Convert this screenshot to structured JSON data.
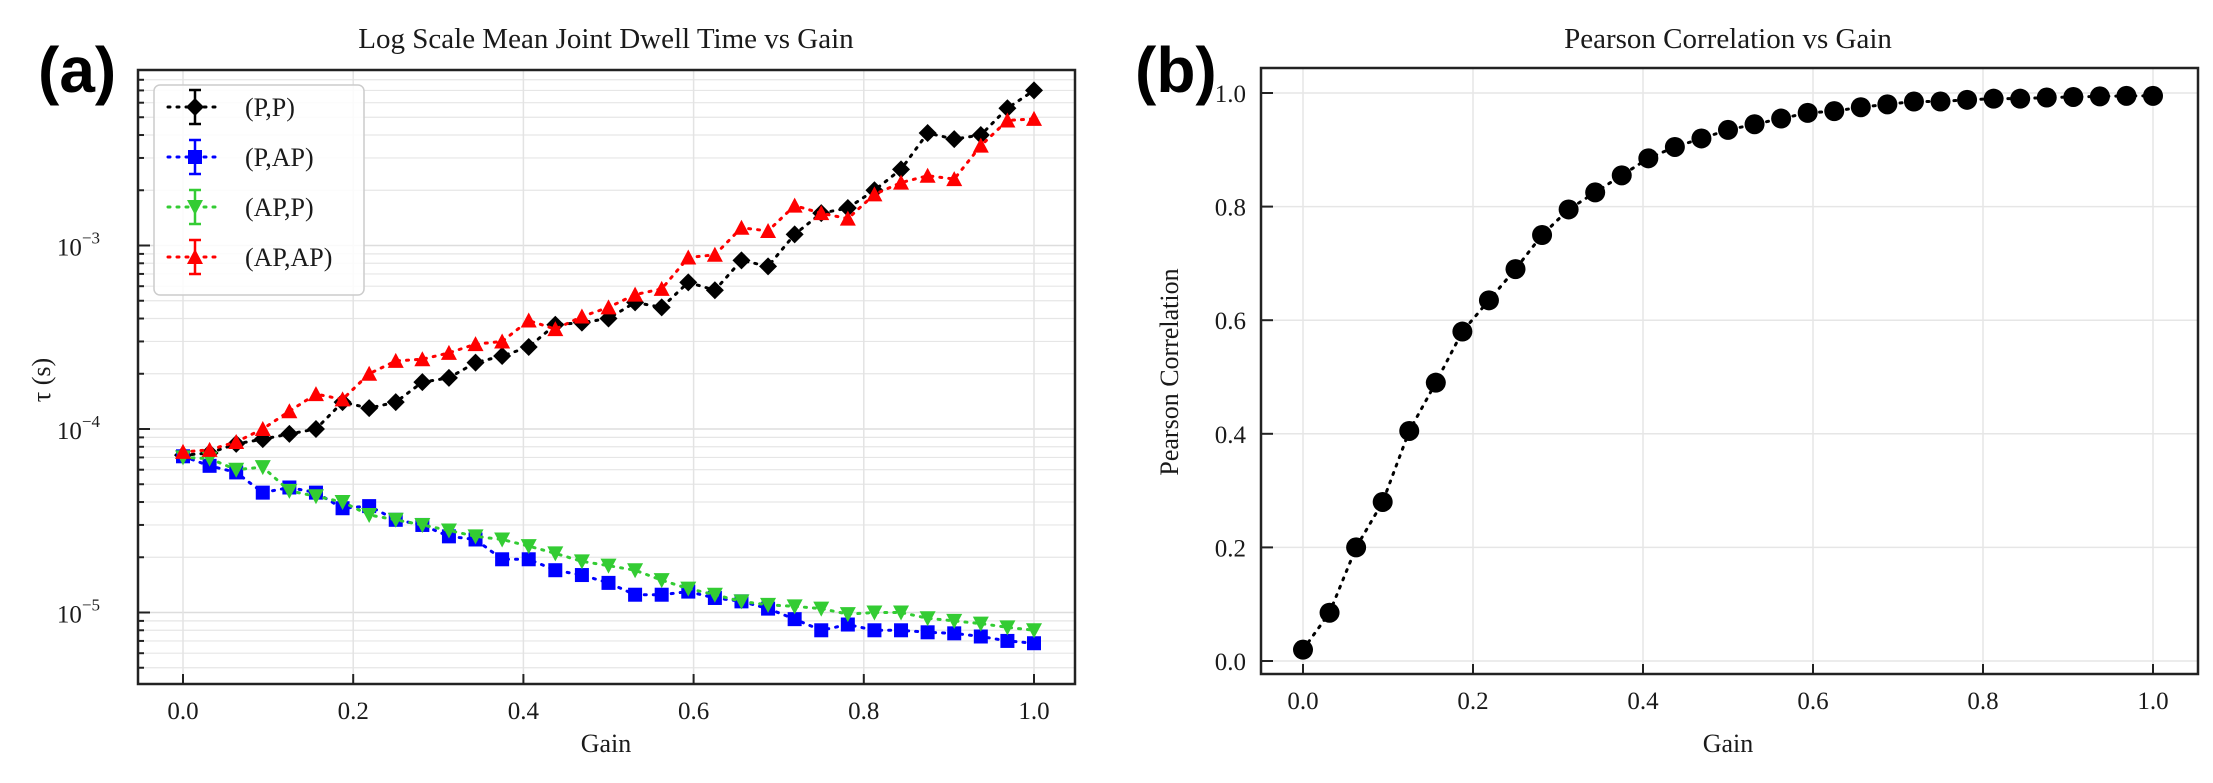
{
  "panels": {
    "a_label": "(a)",
    "b_label": "(b)"
  },
  "chart_data": [
    {
      "type": "line",
      "id": "a",
      "title": "Log Scale Mean Joint Dwell Time vs Gain",
      "xlabel": "Gain",
      "ylabel": "τ (s)",
      "xlim": [
        -0.05,
        1.05
      ],
      "ylim": [
        4.1e-06,
        0.0091
      ],
      "yscale": "log",
      "grid": true,
      "legend_position": "top-left",
      "xticks": [
        0.0,
        0.2,
        0.4,
        0.6,
        0.8,
        1.0
      ],
      "xtick_labels": [
        "0.0",
        "0.2",
        "0.4",
        "0.6",
        "0.8",
        "1.0"
      ],
      "yticks": [
        1e-05,
        0.0001,
        0.001
      ],
      "ytick_base": "10",
      "ytick_exponents": [
        "−5",
        "−4",
        "−3"
      ],
      "x": [
        0,
        0.03125,
        0.0625,
        0.09375,
        0.125,
        0.15625,
        0.1875,
        0.21875,
        0.25,
        0.28125,
        0.3125,
        0.34375,
        0.375,
        0.40625,
        0.4375,
        0.46875,
        0.5,
        0.53125,
        0.5625,
        0.59375,
        0.625,
        0.65625,
        0.6875,
        0.71875,
        0.75,
        0.78125,
        0.8125,
        0.84375,
        0.875,
        0.90625,
        0.9375,
        0.96875,
        1.0
      ],
      "series": [
        {
          "name": "(P,P)",
          "color": "#000000",
          "marker": "diamond",
          "values": [
            7.2e-05,
            7.4e-05,
            8.3e-05,
            8.8e-05,
            9.4e-05,
            0.0001,
            0.00014,
            0.00013,
            0.00014,
            0.00018,
            0.00019,
            0.00023,
            0.00025,
            0.00028,
            0.00037,
            0.00038,
            0.0004,
            0.00049,
            0.00046,
            0.00063,
            0.00057,
            0.00083,
            0.00077,
            0.00115,
            0.0015,
            0.0016,
            0.002,
            0.0026,
            0.0041,
            0.0038,
            0.004,
            0.0056,
            0.007
          ]
        },
        {
          "name": "(P,AP)",
          "color": "#0000ff",
          "marker": "square",
          "values": [
            7.1e-05,
            6.3e-05,
            5.8e-05,
            4.5e-05,
            4.8e-05,
            4.5e-05,
            3.7e-05,
            3.8e-05,
            3.2e-05,
            3e-05,
            2.6e-05,
            2.5e-05,
            1.95e-05,
            1.95e-05,
            1.7e-05,
            1.6e-05,
            1.45e-05,
            1.25e-05,
            1.25e-05,
            1.3e-05,
            1.2e-05,
            1.15e-05,
            1.05e-05,
            9.2e-06,
            8e-06,
            8.6e-06,
            8e-06,
            8e-06,
            7.8e-06,
            7.7e-06,
            7.4e-06,
            7e-06,
            6.8e-06
          ]
        },
        {
          "name": "(AP,P)",
          "color": "#33cc33",
          "marker": "triangle-down",
          "values": [
            7e-05,
            6.9e-05,
            6e-05,
            6.2e-05,
            4.6e-05,
            4.3e-05,
            4e-05,
            3.4e-05,
            3.2e-05,
            3e-05,
            2.8e-05,
            2.6e-05,
            2.5e-05,
            2.3e-05,
            2.1e-05,
            1.9e-05,
            1.8e-05,
            1.7e-05,
            1.5e-05,
            1.35e-05,
            1.25e-05,
            1.15e-05,
            1.1e-05,
            1.08e-05,
            1.05e-05,
            9.8e-06,
            1e-05,
            1e-05,
            9.3e-06,
            9e-06,
            8.7e-06,
            8.3e-06,
            8e-06
          ]
        },
        {
          "name": "(AP,AP)",
          "color": "#ff0000",
          "marker": "triangle-up",
          "values": [
            7.5e-05,
            7.7e-05,
            8.5e-05,
            0.0001,
            0.000125,
            0.000155,
            0.000145,
            0.0002,
            0.000235,
            0.00024,
            0.00026,
            0.00029,
            0.0003,
            0.00039,
            0.00035,
            0.00041,
            0.00046,
            0.00054,
            0.00058,
            0.00086,
            0.00089,
            0.00125,
            0.0012,
            0.00165,
            0.0015,
            0.0014,
            0.0019,
            0.0022,
            0.0024,
            0.0023,
            0.0035,
            0.0048,
            0.0049
          ]
        }
      ]
    },
    {
      "type": "line",
      "id": "b",
      "title": "Pearson Correlation vs Gain",
      "xlabel": "Gain",
      "ylabel": "Pearson Correlation",
      "xlim": [
        -0.05,
        1.05
      ],
      "ylim": [
        -0.0225,
        1.0335
      ],
      "grid": true,
      "xticks": [
        0.0,
        0.2,
        0.4,
        0.6,
        0.8,
        1.0
      ],
      "xtick_labels": [
        "0.0",
        "0.2",
        "0.4",
        "0.6",
        "0.8",
        "1.0"
      ],
      "yticks": [
        0.0,
        0.2,
        0.4,
        0.6,
        0.8,
        1.0
      ],
      "ytick_labels": [
        "0.0",
        "0.2",
        "0.4",
        "0.6",
        "0.8",
        "1.0"
      ],
      "x": [
        0,
        0.03125,
        0.0625,
        0.09375,
        0.125,
        0.15625,
        0.1875,
        0.21875,
        0.25,
        0.28125,
        0.3125,
        0.34375,
        0.375,
        0.40625,
        0.4375,
        0.46875,
        0.5,
        0.53125,
        0.5625,
        0.59375,
        0.625,
        0.65625,
        0.6875,
        0.71875,
        0.75,
        0.78125,
        0.8125,
        0.84375,
        0.875,
        0.90625,
        0.9375,
        0.96875,
        1.0
      ],
      "series": [
        {
          "name": "Pearson Correlation",
          "color": "#000000",
          "marker": "circle",
          "values": [
            0.02,
            0.085,
            0.2,
            0.28,
            0.405,
            0.49,
            0.58,
            0.635,
            0.69,
            0.75,
            0.795,
            0.825,
            0.855,
            0.885,
            0.905,
            0.92,
            0.935,
            0.945,
            0.955,
            0.965,
            0.968,
            0.975,
            0.98,
            0.985,
            0.985,
            0.988,
            0.99,
            0.99,
            0.992,
            0.993,
            0.994,
            0.995,
            0.995
          ]
        }
      ]
    }
  ]
}
